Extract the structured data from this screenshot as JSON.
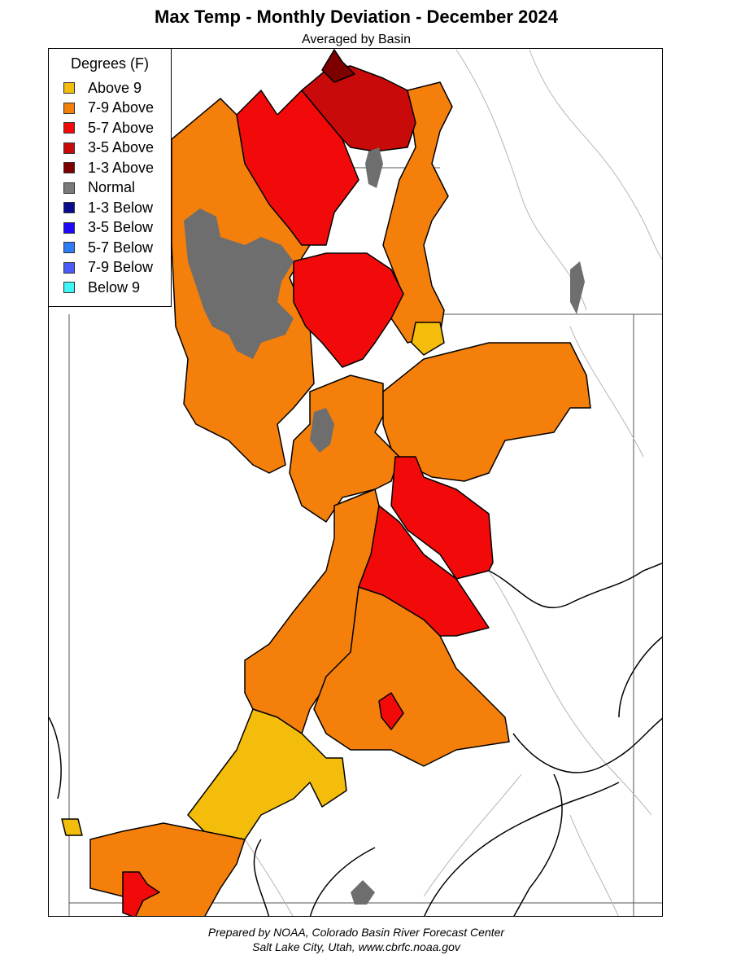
{
  "title": "Max Temp - Monthly Deviation - December 2024",
  "subtitle": "Averaged by Basin",
  "legend": {
    "title": "Degrees (F)",
    "items": [
      {
        "label": "Above 9",
        "color": "#F5BD0B"
      },
      {
        "label": "7-9 Above",
        "color": "#F57F0B"
      },
      {
        "label": "5-7 Above",
        "color": "#F20A0A"
      },
      {
        "label": "3-5 Above",
        "color": "#C80A0A"
      },
      {
        "label": "1-3 Above",
        "color": "#7D0000"
      },
      {
        "label": "Normal",
        "color": "#7A7A7A"
      },
      {
        "label": "1-3 Below",
        "color": "#0A0A8C"
      },
      {
        "label": "3-5 Below",
        "color": "#1E0AF5"
      },
      {
        "label": "5-7 Below",
        "color": "#2E7BF5"
      },
      {
        "label": "7-9 Below",
        "color": "#4A5CF5"
      },
      {
        "label": "Below 9",
        "color": "#40F5F5"
      }
    ]
  },
  "credit": {
    "line1": "Prepared by NOAA, Colorado Basin River Forecast Center",
    "line2": "Salt Lake City, Utah, www.cbrfc.noaa.gov"
  }
}
